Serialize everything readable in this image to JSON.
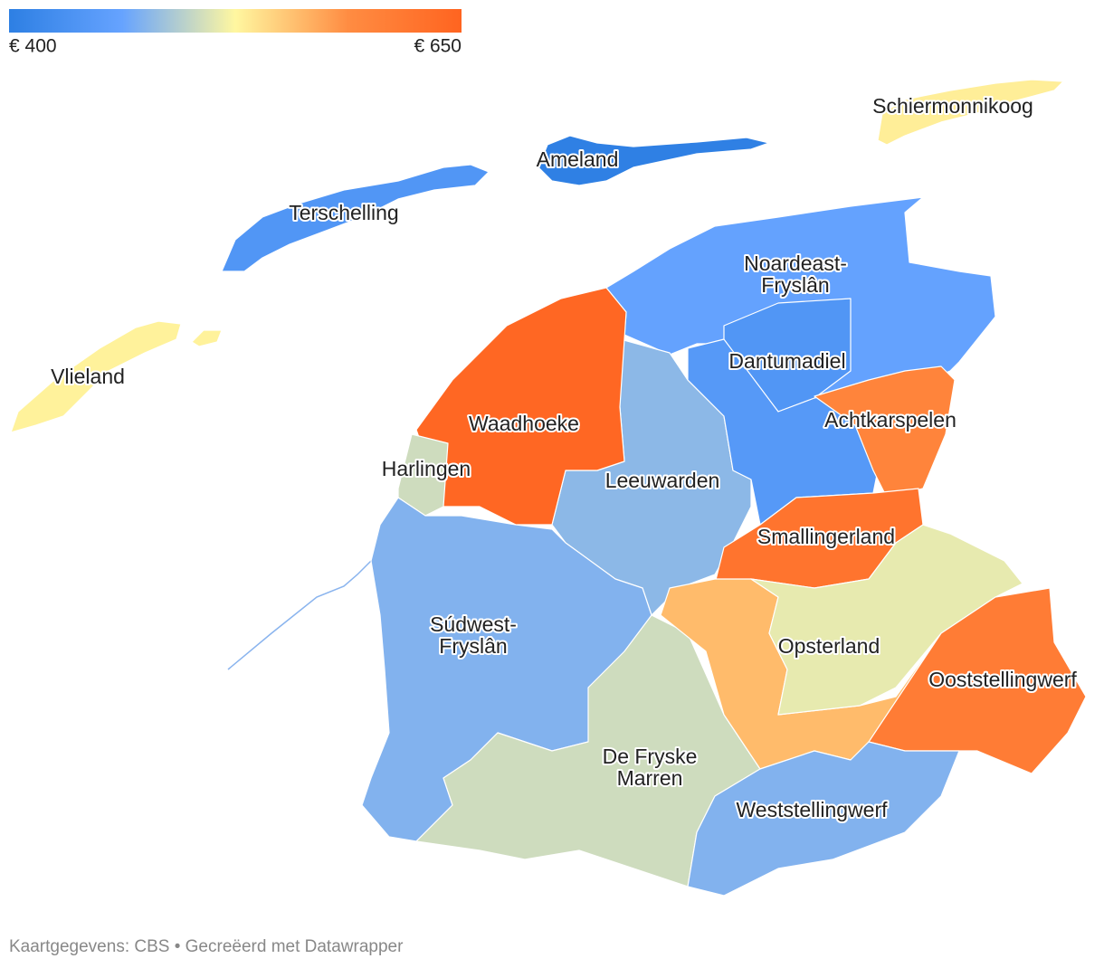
{
  "legend": {
    "min": {
      "value": 400,
      "label": "€ 400"
    },
    "max": {
      "value": 650,
      "label": "€ 650"
    },
    "colors": [
      "#2d7fe3",
      "#66a3ff",
      "#fff7a0",
      "#ff8c42",
      "#ff6420"
    ]
  },
  "regions": [
    {
      "name": "Vlieland",
      "value": 528
    },
    {
      "name": "Terschelling",
      "value": 440
    },
    {
      "name": "Ameland",
      "value": 402
    },
    {
      "name": "Schiermonnikoog",
      "value": 530
    },
    {
      "name": "Noardeast-\nFryslân",
      "value": 460
    },
    {
      "name": "Dantumadiel",
      "value": 440
    },
    {
      "name": "Leeuwarden",
      "value": 478
    },
    {
      "name": null,
      "value": 445
    },
    {
      "name": "Achtkarspelen",
      "value": 600
    },
    {
      "name": "Smallingerland",
      "value": 625
    },
    {
      "name": "Waadhoeke",
      "value": 645
    },
    {
      "name": "Harlingen",
      "value": 505
    },
    {
      "name": "Súdwest-\nFryslân",
      "value": 474
    },
    {
      "name": "De Fryske\nMarren",
      "value": 505
    },
    {
      "name": null,
      "value": 560
    },
    {
      "name": "Opsterland",
      "value": 515
    },
    {
      "name": "Ooststellingwerf",
      "value": 612
    },
    {
      "name": "Weststellingwerf",
      "value": 474
    }
  ],
  "footer": "Kaartgegevens: CBS • Gecreëerd met Datawrapper"
}
